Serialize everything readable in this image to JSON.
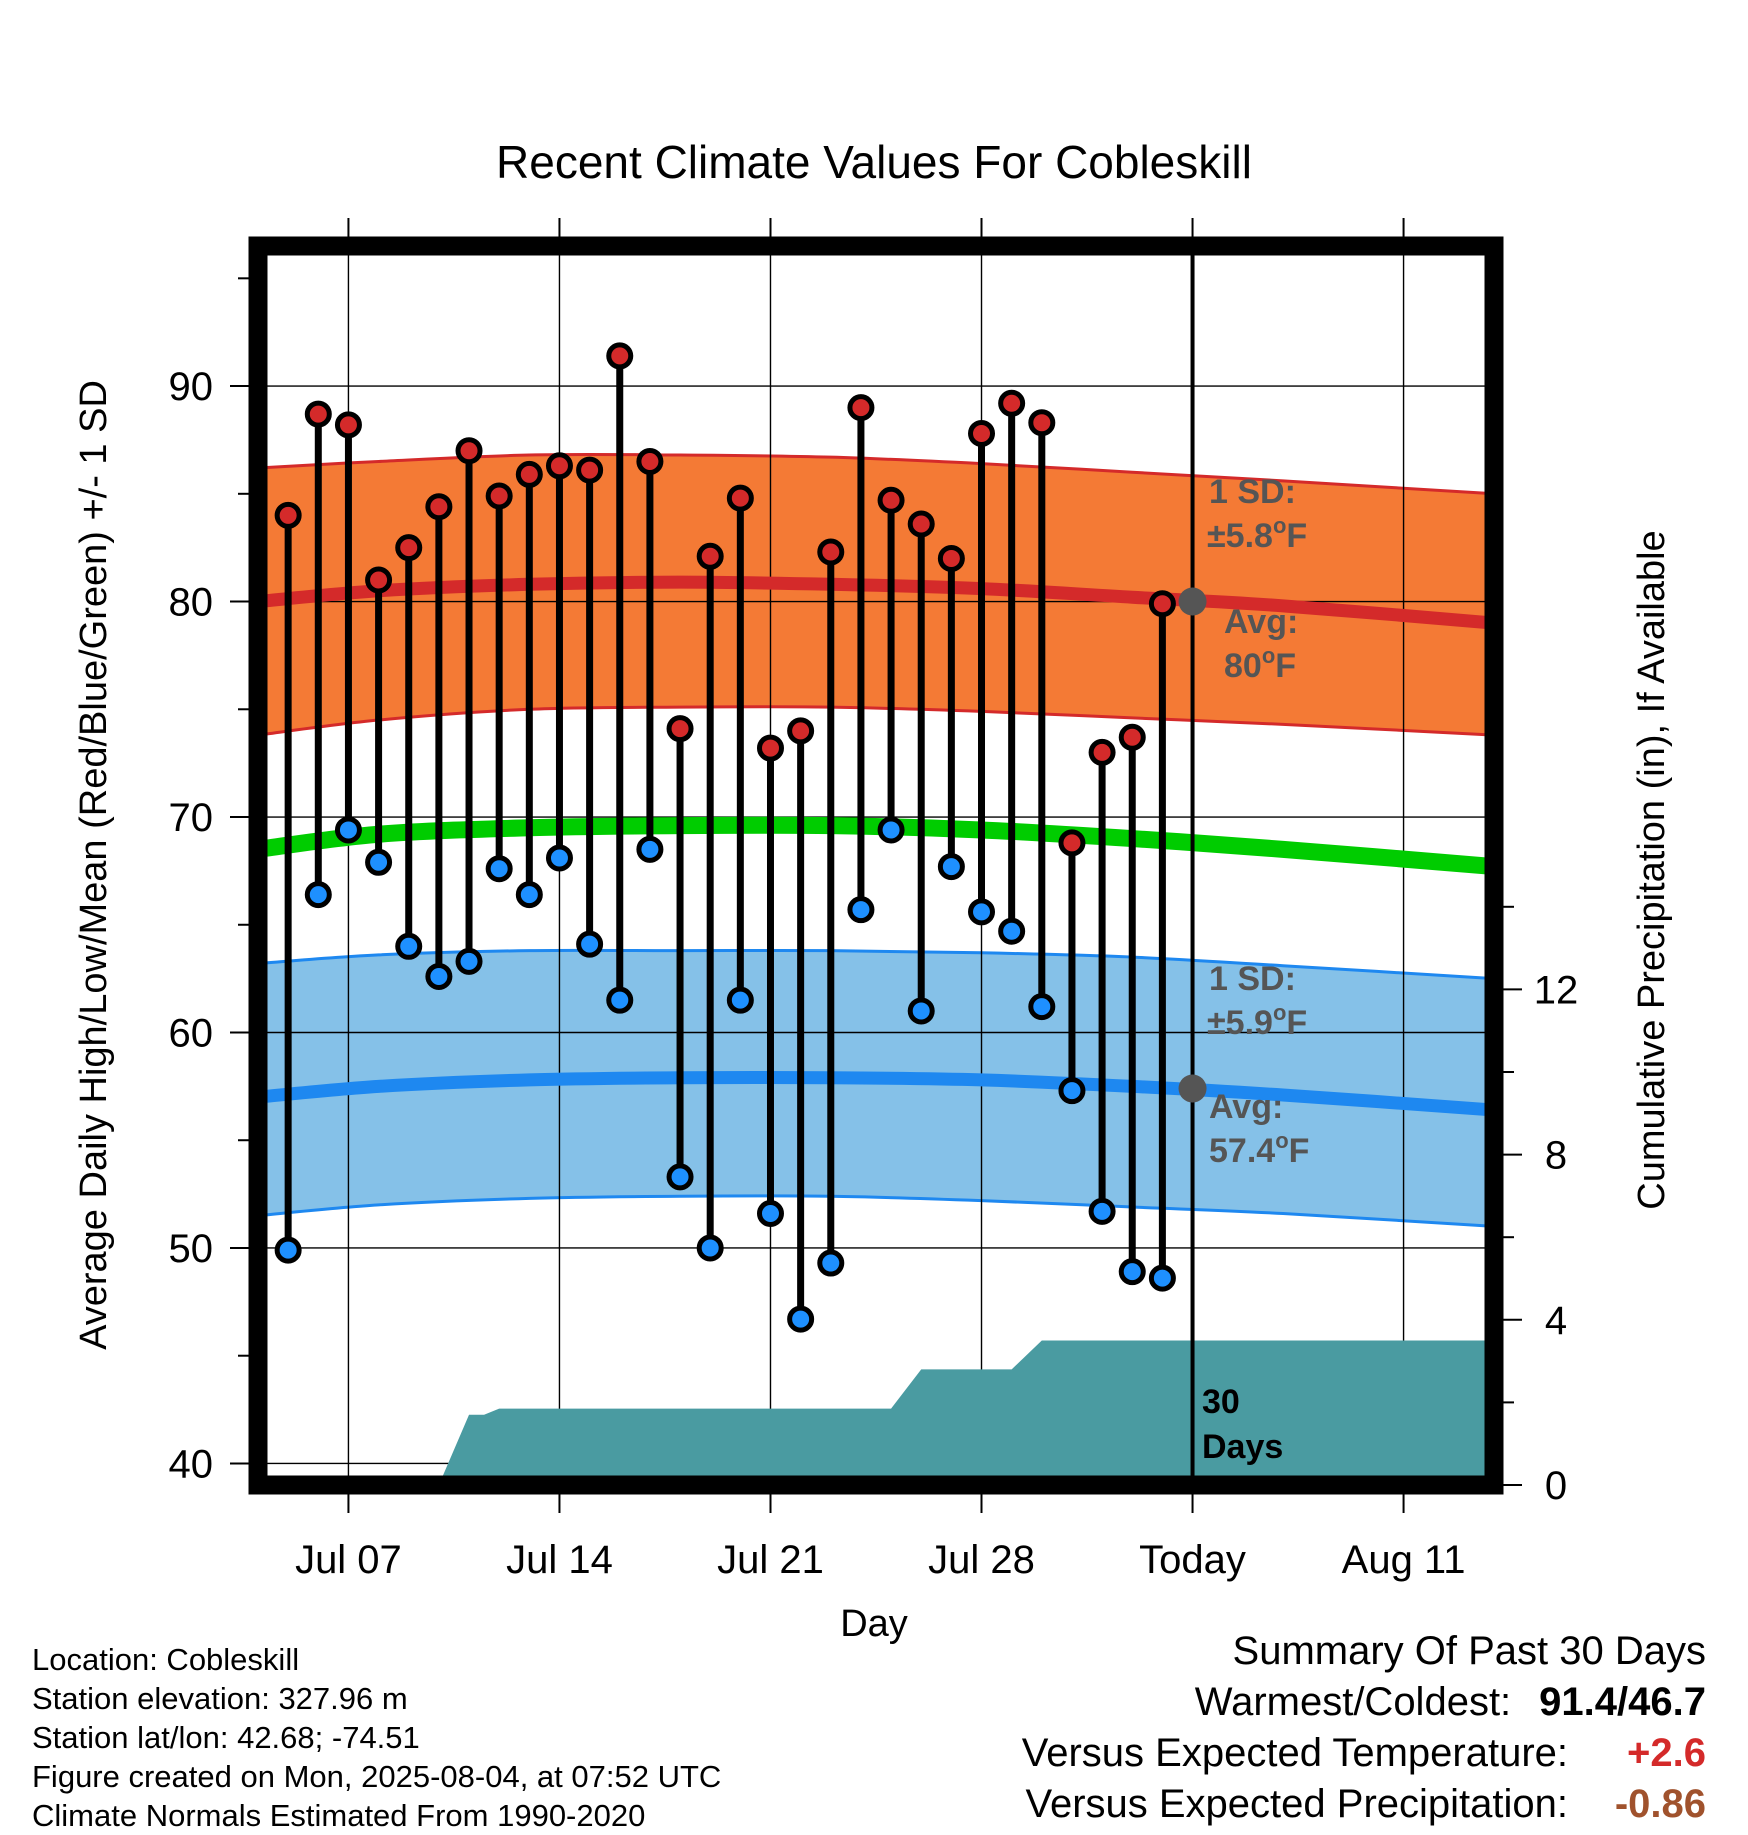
{
  "chart_data": {
    "type": "line",
    "title": "Recent Climate Values For Cobleskill",
    "xlabel": "Day",
    "ylabel": "Average Daily High/Low/Mean (Red/Blue/Green) +/- 1 SD",
    "y2label": "Cumulative Precipitation (in), If Available",
    "ylim": [
      39,
      96.5
    ],
    "y2lim": [
      0,
      30
    ],
    "y_ticks": [
      40,
      50,
      60,
      70,
      80,
      90
    ],
    "y2_ticks": [
      0,
      4,
      8,
      12
    ],
    "x_tick_labels": [
      {
        "day": 4,
        "label": "Jul 07"
      },
      {
        "day": 11,
        "label": "Jul 14"
      },
      {
        "day": 18,
        "label": "Jul 21"
      },
      {
        "day": 25,
        "label": "Jul 28"
      },
      {
        "day": 32,
        "label": "Today"
      },
      {
        "day": 39,
        "label": "Aug 11"
      }
    ],
    "x_range_days": [
      1,
      42
    ],
    "today_day": 32,
    "grid": true,
    "daily_high": [
      {
        "day": 2,
        "value": 84.0
      },
      {
        "day": 3,
        "value": 88.7
      },
      {
        "day": 4,
        "value": 88.2
      },
      {
        "day": 5,
        "value": 81.0
      },
      {
        "day": 6,
        "value": 82.5
      },
      {
        "day": 7,
        "value": 84.4
      },
      {
        "day": 8,
        "value": 87.0
      },
      {
        "day": 9,
        "value": 84.9
      },
      {
        "day": 10,
        "value": 85.9
      },
      {
        "day": 11,
        "value": 86.3
      },
      {
        "day": 12,
        "value": 86.1
      },
      {
        "day": 13,
        "value": 91.4
      },
      {
        "day": 14,
        "value": 86.5
      },
      {
        "day": 15,
        "value": 74.1
      },
      {
        "day": 16,
        "value": 82.1
      },
      {
        "day": 17,
        "value": 84.8
      },
      {
        "day": 18,
        "value": 73.2
      },
      {
        "day": 19,
        "value": 74.0
      },
      {
        "day": 20,
        "value": 82.3
      },
      {
        "day": 21,
        "value": 89.0
      },
      {
        "day": 22,
        "value": 84.7
      },
      {
        "day": 23,
        "value": 83.6
      },
      {
        "day": 24,
        "value": 82.0
      },
      {
        "day": 25,
        "value": 87.8
      },
      {
        "day": 26,
        "value": 89.2
      },
      {
        "day": 27,
        "value": 88.3
      },
      {
        "day": 28,
        "value": 68.8
      },
      {
        "day": 29,
        "value": 73.0
      },
      {
        "day": 30,
        "value": 73.7
      },
      {
        "day": 31,
        "value": 79.9
      }
    ],
    "daily_low": [
      {
        "day": 2,
        "value": 49.9
      },
      {
        "day": 3,
        "value": 66.4
      },
      {
        "day": 4,
        "value": 69.4
      },
      {
        "day": 5,
        "value": 67.9
      },
      {
        "day": 6,
        "value": 64.0
      },
      {
        "day": 7,
        "value": 62.6
      },
      {
        "day": 8,
        "value": 63.3
      },
      {
        "day": 9,
        "value": 67.6
      },
      {
        "day": 10,
        "value": 66.4
      },
      {
        "day": 11,
        "value": 68.1
      },
      {
        "day": 12,
        "value": 64.1
      },
      {
        "day": 13,
        "value": 61.5
      },
      {
        "day": 14,
        "value": 68.5
      },
      {
        "day": 15,
        "value": 53.3
      },
      {
        "day": 16,
        "value": 50.0
      },
      {
        "day": 17,
        "value": 61.5
      },
      {
        "day": 18,
        "value": 51.6
      },
      {
        "day": 19,
        "value": 46.7
      },
      {
        "day": 20,
        "value": 49.3
      },
      {
        "day": 21,
        "value": 65.7
      },
      {
        "day": 22,
        "value": 69.4
      },
      {
        "day": 23,
        "value": 61.0
      },
      {
        "day": 24,
        "value": 67.7
      },
      {
        "day": 25,
        "value": 65.6
      },
      {
        "day": 26,
        "value": 64.7
      },
      {
        "day": 27,
        "value": 61.2
      },
      {
        "day": 28,
        "value": 57.3
      },
      {
        "day": 29,
        "value": 51.7
      },
      {
        "day": 30,
        "value": 48.9
      },
      {
        "day": 31,
        "value": 48.6
      }
    ],
    "normal_high": {
      "x": [
        1,
        5,
        10,
        15,
        20,
        25,
        30,
        35,
        42
      ],
      "avg": [
        80.0,
        80.5,
        80.8,
        80.9,
        80.8,
        80.6,
        80.2,
        79.8,
        79.0
      ],
      "upper": [
        86.2,
        86.5,
        86.8,
        86.8,
        86.7,
        86.4,
        86.0,
        85.6,
        85.0
      ],
      "lower": [
        73.8,
        74.5,
        75.0,
        75.1,
        75.1,
        74.9,
        74.6,
        74.3,
        73.8
      ]
    },
    "normal_low": {
      "x": [
        1,
        5,
        10,
        15,
        20,
        25,
        30,
        35,
        42
      ],
      "avg": [
        57.0,
        57.5,
        57.8,
        57.9,
        57.9,
        57.8,
        57.5,
        57.1,
        56.4
      ],
      "upper": [
        63.2,
        63.6,
        63.8,
        63.8,
        63.8,
        63.7,
        63.5,
        63.1,
        62.5
      ],
      "lower": [
        51.5,
        52.0,
        52.3,
        52.4,
        52.4,
        52.2,
        51.9,
        51.6,
        51.0
      ]
    },
    "normal_mean": {
      "x": [
        1,
        5,
        10,
        15,
        20,
        25,
        30,
        35,
        42
      ],
      "values": [
        68.5,
        69.2,
        69.5,
        69.6,
        69.6,
        69.4,
        69.0,
        68.5,
        67.7
      ]
    },
    "cumulative_precip": [
      {
        "day": 7.0,
        "value": 0.0
      },
      {
        "day": 8.0,
        "value": 1.7
      },
      {
        "day": 8.5,
        "value": 1.7
      },
      {
        "day": 9.0,
        "value": 1.85
      },
      {
        "day": 16.0,
        "value": 1.85
      },
      {
        "day": 22.0,
        "value": 1.85
      },
      {
        "day": 23.0,
        "value": 2.8
      },
      {
        "day": 26.0,
        "value": 2.8
      },
      {
        "day": 27.0,
        "value": 3.5
      },
      {
        "day": 42.0,
        "value": 3.5
      }
    ],
    "annotations": {
      "high_sd_line1": "1 SD:",
      "high_sd_line2": "±5.8",
      "high_avg_line1": "Avg:",
      "high_avg_line2": "80",
      "low_sd_line1": "1 SD:",
      "low_sd_line2": "±5.9",
      "low_avg_line1": "Avg:",
      "low_avg_line2": "57.4",
      "unit_sup": "o",
      "unit_letter": "F",
      "days_line1": "30",
      "days_line2": "Days"
    },
    "colors": {
      "high_band": "#f47a35",
      "high_line": "#d42a2a",
      "low_band": "#85c1e8",
      "low_line": "#1e88f0",
      "mean_line": "#00cc00",
      "precip": "#4a9ba1",
      "high_marker": "#d42a2a",
      "low_marker": "#1e90ff",
      "annotation_text": "#555555"
    }
  },
  "footer": {
    "location": "Location: Cobleskill",
    "elevation": "Station elevation: 327.96 m",
    "latlon": "Station lat/lon: 42.68; -74.51",
    "created": "Figure created on Mon, 2025-08-04, at 07:52 UTC",
    "normals": "Climate Normals Estimated From 1990-2020"
  },
  "summary": {
    "title": "Summary Of Past 30 Days",
    "warmest_label": "Warmest/Coldest:",
    "warmest_value": "91.4/46.7",
    "temp_label": "Versus Expected Temperature:",
    "temp_value": "+2.6",
    "precip_label": "Versus Expected Precipitation:",
    "precip_value": "-0.86"
  }
}
